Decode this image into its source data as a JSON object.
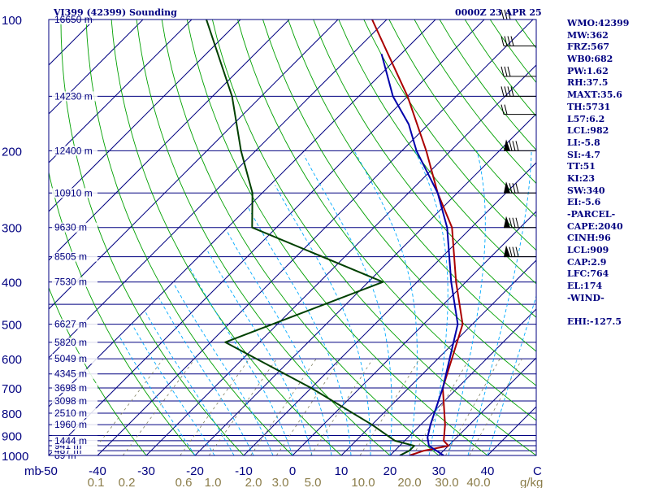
{
  "title_left": "VI399 (42399) Sounding",
  "title_right": "0000Z 23 APR 25",
  "indices": [
    "WMO:42399",
    "MW:362",
    "FRZ:567",
    "WB0:682",
    "PW:1.62",
    "RH:37.5",
    "MAXT:35.6",
    "TH:5731",
    "L57:6.2",
    "LCL:982",
    "LI:-5.8",
    "SI:-4.7",
    "TT:51",
    "KI:23",
    "SW:340",
    "EI:-5.6",
    "-PARCEL-",
    "CAPE:2040",
    "CINH:96",
    "LCL:909",
    "CAP:2.9",
    "LFC:764",
    "EL:174",
    "-WIND-",
    "",
    "EHI:-127.5"
  ],
  "colors": {
    "frame": "#000080",
    "isobar": "#000080",
    "isotherm": "#000080",
    "dry_adiabat": "#00a000",
    "moist_adiabat": "#00aaff",
    "mixing_ratio": "#808060",
    "temperature": "#aa0000",
    "dewpoint": "#004000",
    "parcel": "#0000aa",
    "wind": "#000000",
    "axis_text": "#000080",
    "mixing_text": "#8b7d4a"
  },
  "chart_data": {
    "type": "skew-t",
    "pressure_axis": {
      "unit": "mb",
      "levels": [
        100,
        200,
        300,
        400,
        500,
        600,
        700,
        800,
        900,
        1000
      ],
      "range": [
        1000,
        100
      ],
      "scale": "log"
    },
    "temperature_axis": {
      "unit": "C",
      "ticks": [
        -50,
        -40,
        -30,
        -20,
        -10,
        0,
        10,
        20,
        30,
        40
      ],
      "range_at_surface": [
        -50,
        50
      ]
    },
    "mixing_ratio_axis": {
      "unit": "g/kg",
      "ticks": [
        "0.1",
        "0.2",
        "0.6",
        "1.0",
        "2.0",
        "3.0",
        "5.0",
        "10.0",
        "20.0",
        "30.0",
        "40.0"
      ]
    },
    "height_labels": [
      {
        "p": 1000,
        "label": "89 m"
      },
      {
        "p": 975,
        "label": "487 m"
      },
      {
        "p": 950,
        "label": "941 m"
      },
      {
        "p": 925,
        "label": "1444 m"
      },
      {
        "p": 850,
        "label": "1960 m"
      },
      {
        "p": 800,
        "label": "2510 m"
      },
      {
        "p": 750,
        "label": "3098 m"
      },
      {
        "p": 700,
        "label": "3698 m"
      },
      {
        "p": 650,
        "label": "4345 m"
      },
      {
        "p": 600,
        "label": "5049 m"
      },
      {
        "p": 550,
        "label": "5820 m"
      },
      {
        "p": 500,
        "label": "6627 m"
      },
      {
        "p": 400,
        "label": "7530 m"
      },
      {
        "p": 350,
        "label": "8505 m"
      },
      {
        "p": 300,
        "label": "9630 m"
      },
      {
        "p": 250,
        "label": "10910 m"
      },
      {
        "p": 200,
        "label": "12400 m"
      },
      {
        "p": 150,
        "label": "14230 m"
      },
      {
        "p": 100,
        "label": "16650 m"
      }
    ],
    "series": [
      {
        "key": "temperature",
        "points": [
          {
            "p": 1000,
            "t": 24
          },
          {
            "p": 975,
            "t": 26
          },
          {
            "p": 950,
            "t": 30
          },
          {
            "p": 925,
            "t": 28
          },
          {
            "p": 850,
            "t": 25
          },
          {
            "p": 700,
            "t": 17
          },
          {
            "p": 500,
            "t": 8
          },
          {
            "p": 400,
            "t": -2
          },
          {
            "p": 300,
            "t": -14
          },
          {
            "p": 250,
            "t": -24
          },
          {
            "p": 200,
            "t": -35
          },
          {
            "p": 150,
            "t": -50
          },
          {
            "p": 100,
            "t": -73
          }
        ]
      },
      {
        "key": "dewpoint",
        "points": [
          {
            "p": 1000,
            "t": 22
          },
          {
            "p": 975,
            "t": 23
          },
          {
            "p": 950,
            "t": 23
          },
          {
            "p": 925,
            "t": 18
          },
          {
            "p": 850,
            "t": 10
          },
          {
            "p": 700,
            "t": -10
          },
          {
            "p": 550,
            "t": -37
          },
          {
            "p": 400,
            "t": -17
          },
          {
            "p": 300,
            "t": -55
          },
          {
            "p": 250,
            "t": -62
          },
          {
            "p": 200,
            "t": -73
          },
          {
            "p": 150,
            "t": -86
          },
          {
            "p": 100,
            "t": -107
          }
        ]
      },
      {
        "key": "parcel",
        "points": [
          {
            "p": 1000,
            "t": 31
          },
          {
            "p": 950,
            "t": 26
          },
          {
            "p": 909,
            "t": 24
          },
          {
            "p": 850,
            "t": 22
          },
          {
            "p": 700,
            "t": 17
          },
          {
            "p": 500,
            "t": 7
          },
          {
            "p": 400,
            "t": -3
          },
          {
            "p": 300,
            "t": -15
          },
          {
            "p": 250,
            "t": -24
          },
          {
            "p": 200,
            "t": -37
          },
          {
            "p": 174,
            "t": -44
          },
          {
            "p": 150,
            "t": -53
          },
          {
            "p": 120,
            "t": -64
          }
        ]
      }
    ],
    "winds": [
      {
        "p": 100,
        "barbs": 3
      },
      {
        "p": 115,
        "barbs": 4
      },
      {
        "p": 135,
        "barbs": 3
      },
      {
        "p": 150,
        "barbs": 4
      },
      {
        "p": 165,
        "barbs": 2
      },
      {
        "p": 200,
        "barbs": 3,
        "pennant": true
      },
      {
        "p": 250,
        "barbs": 3,
        "pennant": true
      },
      {
        "p": 300,
        "barbs": 3,
        "pennant": true
      },
      {
        "p": 350,
        "barbs": 3,
        "pennant": true
      }
    ],
    "grid": true
  }
}
